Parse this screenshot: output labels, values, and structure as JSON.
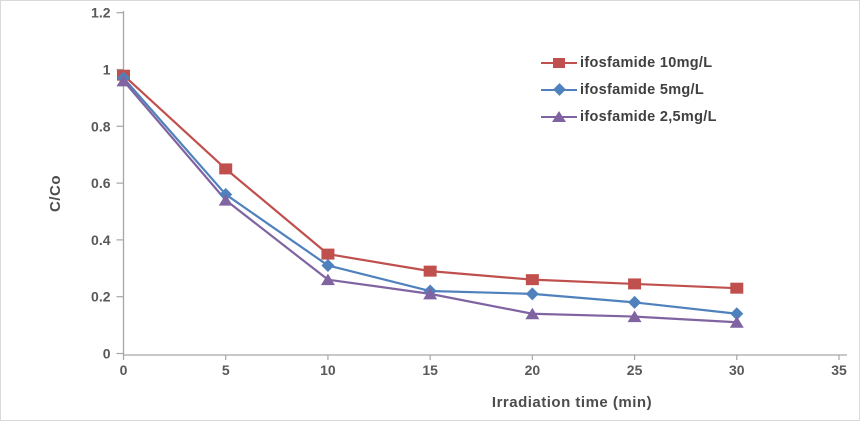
{
  "figure_title": "",
  "chart_data": {
    "type": "line",
    "x": [
      0,
      5,
      10,
      15,
      20,
      25,
      30
    ],
    "series": [
      {
        "name": "ifosfamide 10mg/L",
        "color": "#c0504d",
        "marker": "square",
        "values": [
          0.98,
          0.65,
          0.35,
          0.29,
          0.26,
          0.245,
          0.23
        ]
      },
      {
        "name": "ifosfamide 5mg/L",
        "color": "#4f81bd",
        "marker": "diamond",
        "values": [
          0.97,
          0.56,
          0.31,
          0.22,
          0.21,
          0.18,
          0.14
        ]
      },
      {
        "name": "ifosfamide 2,5mg/L",
        "color": "#8064a2",
        "marker": "triangle",
        "values": [
          0.96,
          0.54,
          0.26,
          0.21,
          0.14,
          0.13,
          0.11
        ]
      }
    ],
    "xlabel": "Irradiation time (min)",
    "ylabel": "C/Co",
    "xlim": [
      0,
      35
    ],
    "ylim": [
      0,
      1.2
    ],
    "x_ticks": [
      0,
      5,
      10,
      15,
      20,
      25,
      30,
      35
    ],
    "y_ticks": [
      0,
      0.2,
      0.4,
      0.6,
      0.8,
      1,
      1.2
    ],
    "grid": false,
    "legend_position": "upper right",
    "colors": {
      "axis_line": "#a6a6a6",
      "tick_labels": "#595959",
      "axis_titles": "#4d4d4d",
      "legend_text": "#404040",
      "background": "#ffffff"
    }
  }
}
